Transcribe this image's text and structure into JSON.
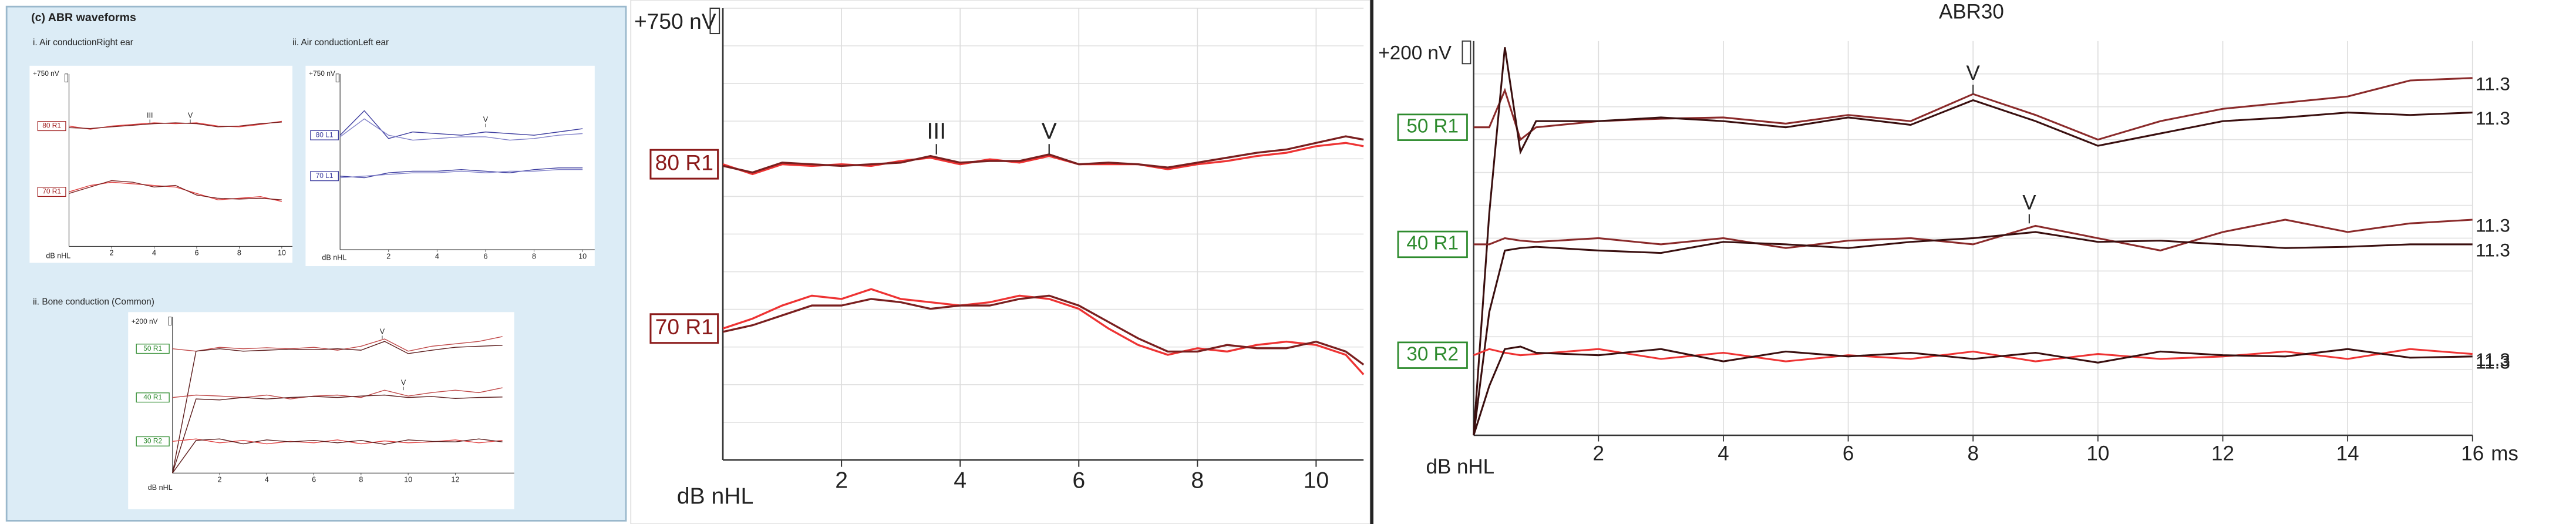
{
  "panel_title": "(c) ABR waveforms",
  "chart_data": [
    {
      "type": "line",
      "title": "i. Air conductionRight ear",
      "xlim": [
        0,
        10.5
      ],
      "xticks": [
        2,
        4,
        6,
        8,
        10
      ],
      "ylim": [
        -10000,
        750
      ],
      "x_label": "dB nHL",
      "scale_label": "+750 nV",
      "label_color": "#a02020",
      "x": [
        0,
        1,
        2,
        3,
        4,
        5,
        6,
        7,
        8,
        9,
        10
      ],
      "channels": [
        {
          "label": "80 R1",
          "traces": [
            {
              "color": "#e04040",
              "values": [
                -2500,
                -2700,
                -2500,
                -2400,
                -2300,
                -2350,
                -2300,
                -2500,
                -2550,
                -2400,
                -2200
              ]
            },
            {
              "color": "#7a1f1f",
              "values": [
                -2600,
                -2650,
                -2550,
                -2450,
                -2350,
                -2300,
                -2350,
                -2550,
                -2500,
                -2350,
                -2250
              ]
            }
          ]
        },
        {
          "label": "70 R1",
          "traces": [
            {
              "color": "#e04040",
              "values": [
                -6600,
                -6200,
                -6000,
                -6100,
                -6200,
                -6300,
                -6700,
                -7100,
                -7000,
                -6900,
                -7200
              ]
            },
            {
              "color": "#7a1f1f",
              "values": [
                -6700,
                -6300,
                -5900,
                -6000,
                -6300,
                -6200,
                -6800,
                -7000,
                -7050,
                -7000,
                -7100
              ]
            }
          ]
        }
      ],
      "annotations": [
        {
          "text": "III",
          "x": 3.8,
          "y": -2300
        },
        {
          "text": "V",
          "x": 5.7,
          "y": -2300
        }
      ]
    },
    {
      "type": "line",
      "title": "ii. Air conductionLeft ear",
      "xlim": [
        0,
        10.5
      ],
      "xticks": [
        2,
        4,
        6,
        8,
        10
      ],
      "ylim": [
        -10000,
        750
      ],
      "x_label": "dB nHL",
      "scale_label": "+750 nV",
      "label_color": "#3b3b9e",
      "x": [
        0,
        1,
        2,
        3,
        4,
        5,
        6,
        7,
        8,
        9,
        10
      ],
      "channels": [
        {
          "label": "80 L1",
          "traces": [
            {
              "color": "#3b3b9e",
              "values": [
                -3000,
                -1500,
                -3200,
                -2800,
                -2900,
                -3000,
                -2800,
                -2900,
                -3000,
                -2800,
                -2600
              ]
            },
            {
              "color": "#8080c8",
              "values": [
                -3100,
                -2000,
                -3000,
                -3300,
                -3200,
                -3100,
                -3100,
                -3300,
                -3200,
                -3000,
                -2900
              ]
            }
          ]
        },
        {
          "label": "70 L1",
          "traces": [
            {
              "color": "#3b3b9e",
              "values": [
                -5500,
                -5600,
                -5300,
                -5200,
                -5200,
                -5100,
                -5200,
                -5300,
                -5100,
                -5000,
                -5000
              ]
            },
            {
              "color": "#8080c8",
              "values": [
                -5600,
                -5500,
                -5400,
                -5300,
                -5300,
                -5200,
                -5300,
                -5200,
                -5200,
                -5100,
                -5100
              ]
            }
          ]
        }
      ],
      "annotations": [
        {
          "text": "V",
          "x": 6,
          "y": -2500
        }
      ]
    },
    {
      "type": "line",
      "title": "ii. Bone conduction (Common)",
      "xlim": [
        0,
        14.5
      ],
      "xticks": [
        2,
        4,
        6,
        8,
        10,
        12
      ],
      "ylim": [
        -3000,
        200
      ],
      "x_label": "dB nHL",
      "scale_label": "+200 nV",
      "label_color": "#2e8b2e",
      "x": [
        0,
        1,
        2,
        3,
        4,
        5,
        6,
        7,
        8,
        9,
        10,
        11,
        12,
        13,
        14
      ],
      "channels": [
        {
          "label": "50 R1",
          "traces": [
            {
              "color": "#c04848",
              "values": [
                -450,
                -500,
                -420,
                -450,
                -430,
                -450,
                -420,
                -480,
                -400,
                -250,
                -500,
                -400,
                -350,
                -300,
                -200
              ]
            },
            {
              "color": "#5a1a1a",
              "values": [
                -3000,
                -500,
                -450,
                -500,
                -480,
                -460,
                -470,
                -450,
                -480,
                -300,
                -550,
                -480,
                -420,
                -400,
                -380
              ]
            }
          ]
        },
        {
          "label": "40 R1",
          "traces": [
            {
              "color": "#c04848",
              "values": [
                -1450,
                -1400,
                -1420,
                -1450,
                -1400,
                -1480,
                -1420,
                -1400,
                -1450,
                -1300,
                -1420,
                -1350,
                -1300,
                -1350,
                -1250
              ]
            },
            {
              "color": "#5a1a1a",
              "values": [
                -3000,
                -1480,
                -1500,
                -1450,
                -1480,
                -1450,
                -1430,
                -1450,
                -1420,
                -1400,
                -1450,
                -1430,
                -1470,
                -1450,
                -1440
              ]
            }
          ]
        },
        {
          "label": "30 R2",
          "traces": [
            {
              "color": "#e04040",
              "values": [
                -2350,
                -2300,
                -2380,
                -2330,
                -2400,
                -2350,
                -2380,
                -2320,
                -2400,
                -2340,
                -2380,
                -2360,
                -2320,
                -2380,
                -2330
              ]
            },
            {
              "color": "#5a1a1a",
              "values": [
                -3000,
                -2330,
                -2300,
                -2400,
                -2320,
                -2360,
                -2330,
                -2380,
                -2330,
                -2410,
                -2320,
                -2350,
                -2360,
                -2300,
                -2360
              ]
            }
          ]
        }
      ],
      "annotations": [
        {
          "text": "V",
          "x": 8.9,
          "y": -250
        },
        {
          "text": "V",
          "x": 9.8,
          "y": -1300
        }
      ]
    },
    {
      "type": "line",
      "xlim": [
        0,
        10.8
      ],
      "xticks": [
        2,
        4,
        6,
        8,
        10
      ],
      "ylim": [
        -13000,
        750
      ],
      "x_label": "dB nHL",
      "scale_label": "+750 nV",
      "label_color": "#8b1a1a",
      "grid": true,
      "x": [
        0,
        0.5,
        1,
        1.5,
        2,
        2.5,
        3,
        3.5,
        4,
        4.5,
        5,
        5.5,
        6,
        6.5,
        7,
        7.5,
        8,
        8.5,
        9,
        9.5,
        10,
        10.5,
        10.8
      ],
      "channels": [
        {
          "label": "80 R1",
          "traces": [
            {
              "color": "#ee3333",
              "values": [
                -4000,
                -4300,
                -4000,
                -4050,
                -4000,
                -4050,
                -3900,
                -3800,
                -4000,
                -3850,
                -3950,
                -3750,
                -4000,
                -4000,
                -4000,
                -4150,
                -4000,
                -3900,
                -3750,
                -3650,
                -3450,
                -3350,
                -3450
              ]
            },
            {
              "color": "#7a1f1f",
              "values": [
                -4050,
                -4250,
                -3950,
                -4000,
                -4050,
                -4000,
                -3950,
                -3750,
                -3950,
                -3900,
                -3900,
                -3700,
                -4000,
                -3950,
                -4000,
                -4100,
                -3950,
                -3800,
                -3650,
                -3550,
                -3350,
                -3150,
                -3250
              ]
            }
          ]
        },
        {
          "label": "70 R1",
          "traces": [
            {
              "color": "#ee3333",
              "values": [
                -9000,
                -8700,
                -8300,
                -8000,
                -8100,
                -7800,
                -8100,
                -8200,
                -8300,
                -8200,
                -8000,
                -8100,
                -8400,
                -9000,
                -9500,
                -9800,
                -9600,
                -9700,
                -9500,
                -9400,
                -9500,
                -9800,
                -10400
              ]
            },
            {
              "color": "#7a1f1f",
              "values": [
                -9100,
                -8900,
                -8600,
                -8300,
                -8300,
                -8100,
                -8200,
                -8400,
                -8300,
                -8300,
                -8100,
                -8000,
                -8300,
                -8800,
                -9300,
                -9700,
                -9700,
                -9500,
                -9600,
                -9600,
                -9400,
                -9700,
                -10100
              ]
            }
          ]
        }
      ],
      "annotations": [
        {
          "text": "III",
          "x": 3.6,
          "y": -3700
        },
        {
          "text": "V",
          "x": 5.5,
          "y": -3700
        }
      ]
    },
    {
      "type": "line",
      "title": "ABR30",
      "xlim": [
        0,
        16
      ],
      "xticks": [
        2,
        4,
        6,
        8,
        10,
        12,
        14,
        16
      ],
      "ylim": [
        -3000,
        200
      ],
      "x_label": "dB nHL",
      "x_unit": "ms",
      "scale_label": "+200 nV",
      "label_color": "#2e8b2e",
      "grid": true,
      "x": [
        0,
        0.25,
        0.5,
        0.75,
        1,
        2,
        3,
        4,
        5,
        6,
        7,
        8,
        9,
        10,
        11,
        12,
        13,
        14,
        15,
        16
      ],
      "channels": [
        {
          "label": "50 R1",
          "traces": [
            {
              "color": "#8a2a2a",
              "end_label": 11.3,
              "values": [
                -500,
                -500,
                -200,
                -600,
                -500,
                -450,
                -430,
                -420,
                -470,
                -400,
                -450,
                -230,
                -400,
                -600,
                -450,
                -350,
                -300,
                -250,
                -120,
                -100
              ]
            },
            {
              "color": "#3a0f0f",
              "end_label": 11.3,
              "values": [
                -3000,
                -1200,
                150,
                -700,
                -450,
                -450,
                -420,
                -450,
                -500,
                -420,
                -480,
                -280,
                -450,
                -650,
                -550,
                -450,
                -420,
                -380,
                -400,
                -380
              ]
            }
          ]
        },
        {
          "label": "40 R1",
          "traces": [
            {
              "color": "#8a2a2a",
              "end_label": 11.3,
              "values": [
                -1450,
                -1450,
                -1400,
                -1420,
                -1430,
                -1400,
                -1450,
                -1400,
                -1480,
                -1420,
                -1400,
                -1450,
                -1300,
                -1400,
                -1500,
                -1350,
                -1250,
                -1350,
                -1280,
                -1250
              ]
            },
            {
              "color": "#3a0f0f",
              "end_label": 11.3,
              "values": [
                -3000,
                -2000,
                -1500,
                -1480,
                -1470,
                -1500,
                -1520,
                -1430,
                -1450,
                -1480,
                -1430,
                -1400,
                -1350,
                -1430,
                -1420,
                -1450,
                -1480,
                -1470,
                -1450,
                -1450
              ]
            }
          ]
        },
        {
          "label": "30 R2",
          "traces": [
            {
              "color": "#ee3333",
              "end_label": 11.3,
              "values": [
                -2350,
                -2300,
                -2330,
                -2350,
                -2340,
                -2300,
                -2380,
                -2330,
                -2400,
                -2350,
                -2380,
                -2320,
                -2400,
                -2340,
                -2380,
                -2360,
                -2320,
                -2380,
                -2300,
                -2340
              ]
            },
            {
              "color": "#3a0f0f",
              "end_label": 11.3,
              "values": [
                -3000,
                -2600,
                -2300,
                -2280,
                -2330,
                -2350,
                -2300,
                -2400,
                -2320,
                -2360,
                -2330,
                -2380,
                -2330,
                -2410,
                -2320,
                -2350,
                -2360,
                -2300,
                -2370,
                -2360
              ]
            }
          ]
        }
      ],
      "annotations": [
        {
          "text": "V",
          "x": 8,
          "y": -230
        },
        {
          "text": "V",
          "x": 8.9,
          "y": -1280
        }
      ]
    }
  ]
}
